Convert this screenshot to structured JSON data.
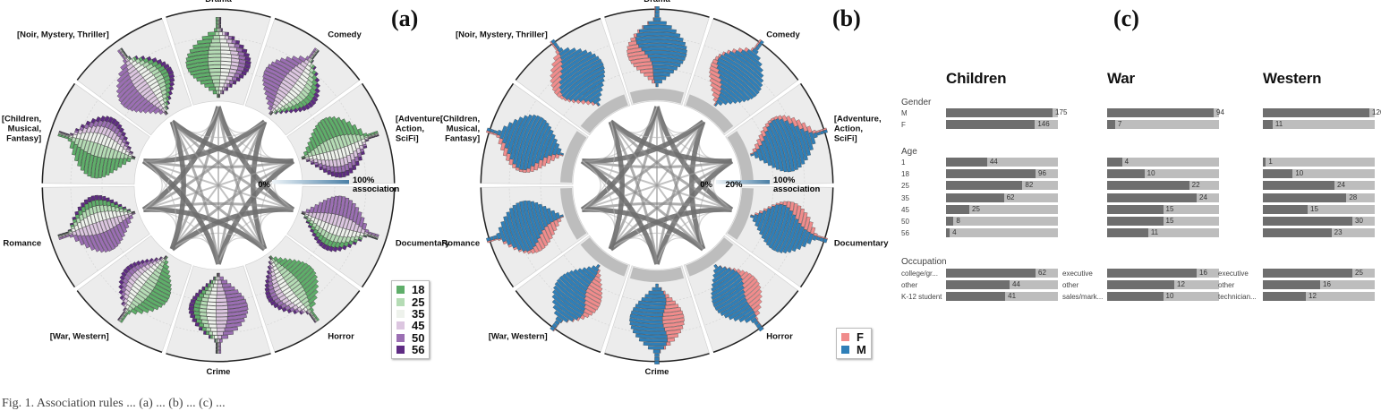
{
  "labels": {
    "a": "(a)",
    "b": "(b)",
    "c": "(c)"
  },
  "caption": "Fig. 1. Association rules ... (a) ... (b) ... (c) ...",
  "genres": [
    "Drama",
    "Comedy",
    "[Adventure,\nAction,\nSciFi]",
    "Documentary",
    "Horror",
    "Crime",
    "[War, Western]",
    "Romance",
    "[Children,\nMusical,\nFantasy]",
    "[Noir, Mystery, Thriller]"
  ],
  "scale": {
    "min": "0%",
    "mid": "20%",
    "max": "100%",
    "caption": "association"
  },
  "age_legend": [
    {
      "label": "18",
      "color": "#5fae6a"
    },
    {
      "label": "25",
      "color": "#b5dcb5"
    },
    {
      "label": "35",
      "color": "#eef2ec"
    },
    {
      "label": "45",
      "color": "#dcc6e0"
    },
    {
      "label": "50",
      "color": "#9b6fb3"
    },
    {
      "label": "56",
      "color": "#5e2b83"
    }
  ],
  "gender_legend": [
    {
      "label": "F",
      "color": "#f08c8c"
    },
    {
      "label": "M",
      "color": "#2f7fb8"
    }
  ],
  "chart_data": [
    {
      "type": "radial-histogram",
      "panel": "(a)",
      "categories": [
        "Drama",
        "Comedy",
        "[Adventure, Action, SciFi]",
        "Documentary",
        "Horror",
        "Crime",
        "[War, Western]",
        "Romance",
        "[Children, Musical, Fantasy]",
        "[Noir, Mystery, Thriller]"
      ],
      "legend": [
        "18",
        "25",
        "35",
        "45",
        "50",
        "56"
      ]
    },
    {
      "type": "radial-histogram",
      "panel": "(b)",
      "categories": [
        "Drama",
        "Comedy",
        "[Adventure, Action, SciFi]",
        "Documentary",
        "Horror",
        "Crime",
        "[War, Western]",
        "Romance",
        "[Children, Musical, Fantasy]",
        "[Noir, Mystery, Thriller]"
      ],
      "legend": [
        "F",
        "M"
      ]
    },
    {
      "type": "bar",
      "panel": "(c)",
      "groups": [
        {
          "title": "Children",
          "gender": [
            {
              "label": "M",
              "value": 175
            },
            {
              "label": "F",
              "value": 146
            }
          ],
          "age": [
            {
              "label": "1",
              "value": 44
            },
            {
              "label": "18",
              "value": 96
            },
            {
              "label": "25",
              "value": 82
            },
            {
              "label": "35",
              "value": 62
            },
            {
              "label": "45",
              "value": 25
            },
            {
              "label": "50",
              "value": 8
            },
            {
              "label": "56",
              "value": 4
            }
          ],
          "occupation": [
            {
              "label": "college/gr...",
              "value": 62
            },
            {
              "label": "other",
              "value": 44
            },
            {
              "label": "K-12 student",
              "value": 41
            }
          ]
        },
        {
          "title": "War",
          "gender": [
            {
              "label": "",
              "value": 94
            },
            {
              "label": "",
              "value": 7
            }
          ],
          "age": [
            {
              "label": "",
              "value": 4
            },
            {
              "label": "",
              "value": 10
            },
            {
              "label": "",
              "value": 22
            },
            {
              "label": "",
              "value": 24
            },
            {
              "label": "",
              "value": 15
            },
            {
              "label": "",
              "value": 15
            },
            {
              "label": "",
              "value": 11
            }
          ],
          "occupation": [
            {
              "label": "executive",
              "value": 16
            },
            {
              "label": "other",
              "value": 12
            },
            {
              "label": "sales/mark...",
              "value": 10
            }
          ]
        },
        {
          "title": "Western",
          "gender": [
            {
              "label": "",
              "value": 120
            },
            {
              "label": "",
              "value": 11
            }
          ],
          "age": [
            {
              "label": "",
              "value": 1
            },
            {
              "label": "",
              "value": 10
            },
            {
              "label": "",
              "value": 24
            },
            {
              "label": "",
              "value": 28
            },
            {
              "label": "",
              "value": 15
            },
            {
              "label": "",
              "value": 30
            },
            {
              "label": "",
              "value": 23
            }
          ],
          "occupation": [
            {
              "label": "executive",
              "value": 25
            },
            {
              "label": "other",
              "value": 16
            },
            {
              "label": "technician...",
              "value": 12
            }
          ]
        }
      ],
      "sections": [
        "Gender",
        "Age",
        "Occupation"
      ]
    }
  ]
}
